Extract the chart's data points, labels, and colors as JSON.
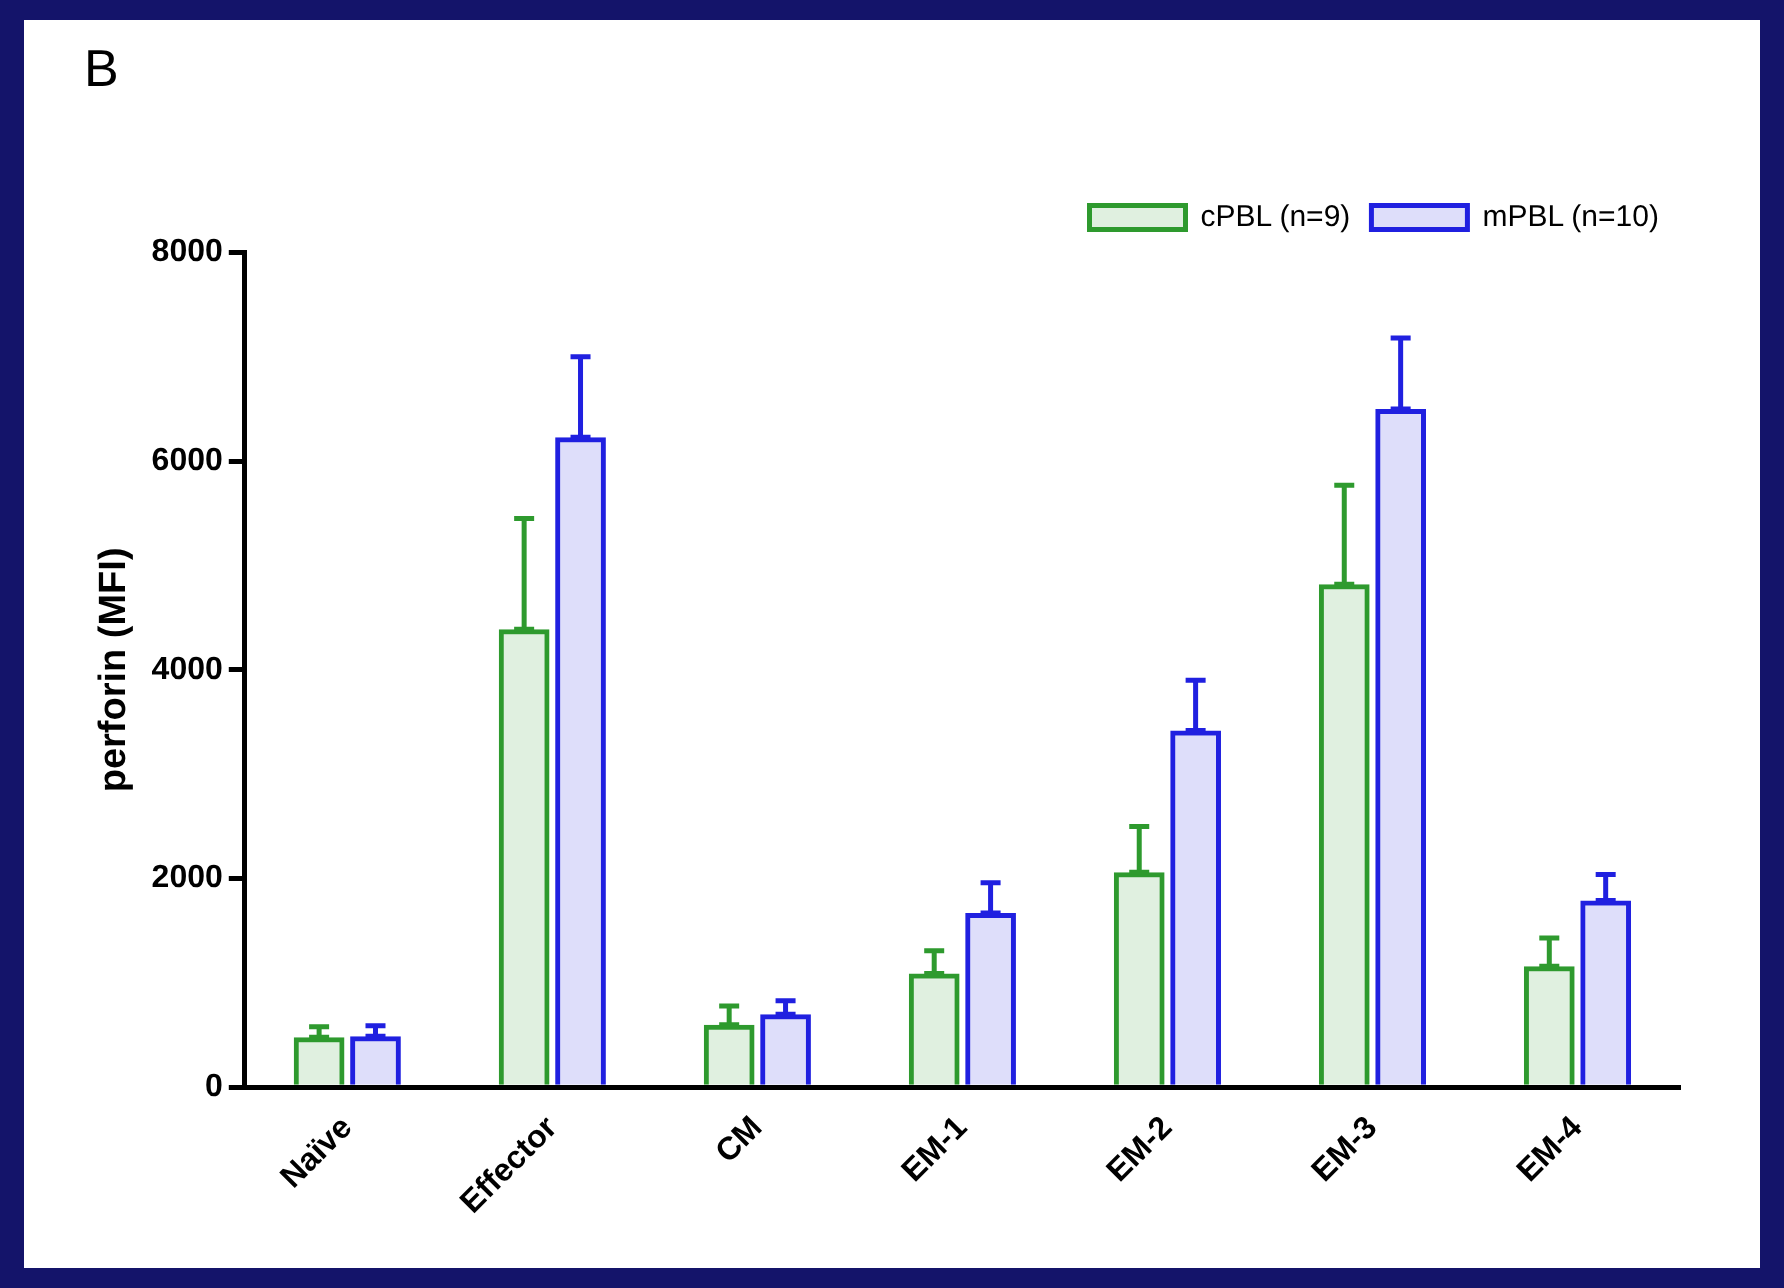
{
  "chart_data": {
    "type": "bar",
    "title": "B",
    "ylabel": "perforin (MFI)",
    "categories": [
      "Naïve",
      "Effector",
      "CM",
      "EM-1",
      "EM-2",
      "EM-3",
      "EM-4"
    ],
    "series": [
      {
        "name": "cPBL (n=9)",
        "color": "#2e9a2e",
        "values": [
          480,
          4390,
          600,
          1090,
          2060,
          4820,
          1160
        ],
        "errors": [
          [
            480,
            580
          ],
          [
            4390,
            5450
          ],
          [
            600,
            780
          ],
          [
            1090,
            1310
          ],
          [
            2060,
            2500
          ],
          [
            4820,
            5770
          ],
          [
            1160,
            1430
          ]
        ]
      },
      {
        "name": "mPBL (n=10)",
        "color": "#2020e0",
        "values": [
          490,
          6230,
          700,
          1670,
          3420,
          6500,
          1790
        ],
        "errors": [
          [
            490,
            590
          ],
          [
            6230,
            7000
          ],
          [
            700,
            830
          ],
          [
            1670,
            1960
          ],
          [
            3420,
            3900
          ],
          [
            6500,
            7180
          ],
          [
            1790,
            2040
          ]
        ]
      }
    ],
    "ylim": [
      0,
      8000
    ],
    "yticks": [
      0,
      2000,
      4000,
      6000,
      8000
    ],
    "grid": false,
    "legend": "top right"
  }
}
